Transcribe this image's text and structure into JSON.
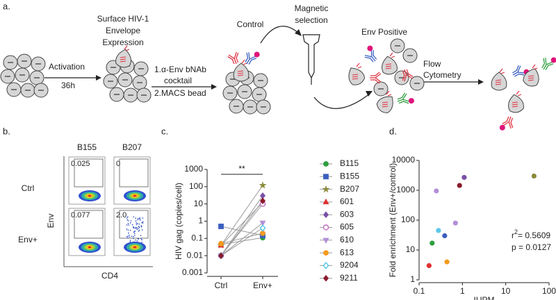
{
  "panel_labels": [
    "a.",
    "b.",
    "c.",
    "d."
  ],
  "diagram": {
    "activation": "Activation",
    "time": "36h",
    "surface": [
      "Surface HIV-1",
      "Envelope",
      "Expression"
    ],
    "steps": [
      "1.α-Env bNAb",
      "cocktail",
      "2.MACS bead"
    ],
    "control": "Control",
    "magnetic": [
      "Magnetic",
      "selection"
    ],
    "env_positive": "Env Positive",
    "flow": [
      "Flow",
      "Cytometry"
    ]
  },
  "flow": {
    "columns": [
      "B155",
      "B207"
    ],
    "rows": [
      "Ctrl",
      "Env+"
    ],
    "y_label": "Env",
    "x_label": "CD4",
    "gates": [
      [
        "0.025",
        "0"
      ],
      [
        "0.077",
        "2.0"
      ]
    ]
  },
  "chart_data": [
    {
      "type": "line",
      "y_label": "HIV gag (copies/cell)",
      "categories": [
        "Ctrl",
        "Env+"
      ],
      "log_scale": true,
      "ylim": [
        0.001,
        1000
      ],
      "yticks": [
        0.001,
        0.01,
        0.1,
        1,
        10,
        100,
        1000
      ],
      "annotation": "**",
      "legend": "right",
      "series": [
        {
          "name": "B115",
          "color": "#2e9e3e",
          "marker": "circle",
          "values": [
            0.045,
            0.11
          ]
        },
        {
          "name": "B155",
          "color": "#3a5fbf",
          "marker": "square",
          "values": [
            0.5,
            0.15
          ]
        },
        {
          "name": "B207",
          "color": "#8b8a3a",
          "marker": "star",
          "values": [
            0.04,
            120
          ]
        },
        {
          "name": "601",
          "color": "#e03030",
          "marker": "triangle",
          "values": [
            0.04,
            12
          ]
        },
        {
          "name": "603",
          "color": "#7b4fa8",
          "marker": "diamond",
          "values": [
            0.01,
            30
          ]
        },
        {
          "name": "605",
          "color": "#c070c0",
          "marker": "circle-open",
          "values": [
            0.01,
            10
          ]
        },
        {
          "name": "610",
          "color": "#b48fd8",
          "marker": "triangle-down",
          "values": [
            0.01,
            0.8
          ]
        },
        {
          "name": "613",
          "color": "#f39a1e",
          "marker": "circle",
          "values": [
            0.05,
            0.2
          ]
        },
        {
          "name": "9204",
          "color": "#5bc8e8",
          "marker": "diamond-open",
          "values": [
            0.01,
            0.4
          ]
        },
        {
          "name": "9211",
          "color": "#8b1a2a",
          "marker": "diamond",
          "values": [
            0.01,
            15
          ]
        }
      ]
    },
    {
      "type": "scatter",
      "x_label": "IUPM",
      "y_label": "Fold enrichment  (Env+/control)",
      "log_scale": true,
      "xlim": [
        0.1,
        100
      ],
      "xticks": [
        0.1,
        1,
        10,
        100
      ],
      "ylim": [
        1,
        10000
      ],
      "yticks": [
        1,
        10,
        100,
        1000,
        10000
      ],
      "x": [
        0.2,
        0.39,
        45,
        0.17,
        1.1,
        0.25,
        0.69,
        0.44,
        0.28,
        0.86
      ],
      "y": [
        17,
        30,
        3000,
        3,
        2700,
        950,
        80,
        4,
        45,
        1450
      ],
      "colors": [
        "#2e9e3e",
        "#3a5fbf",
        "#8b8a3a",
        "#e03030",
        "#7b4fa8",
        "#b48fd8",
        "#b48fd8",
        "#f39a1e",
        "#5bc8e8",
        "#8b1a2a"
      ],
      "annotations": [
        [
          "r",
          "2",
          "= 0.5609"
        ],
        [
          "p = 0.0127"
        ]
      ]
    }
  ]
}
